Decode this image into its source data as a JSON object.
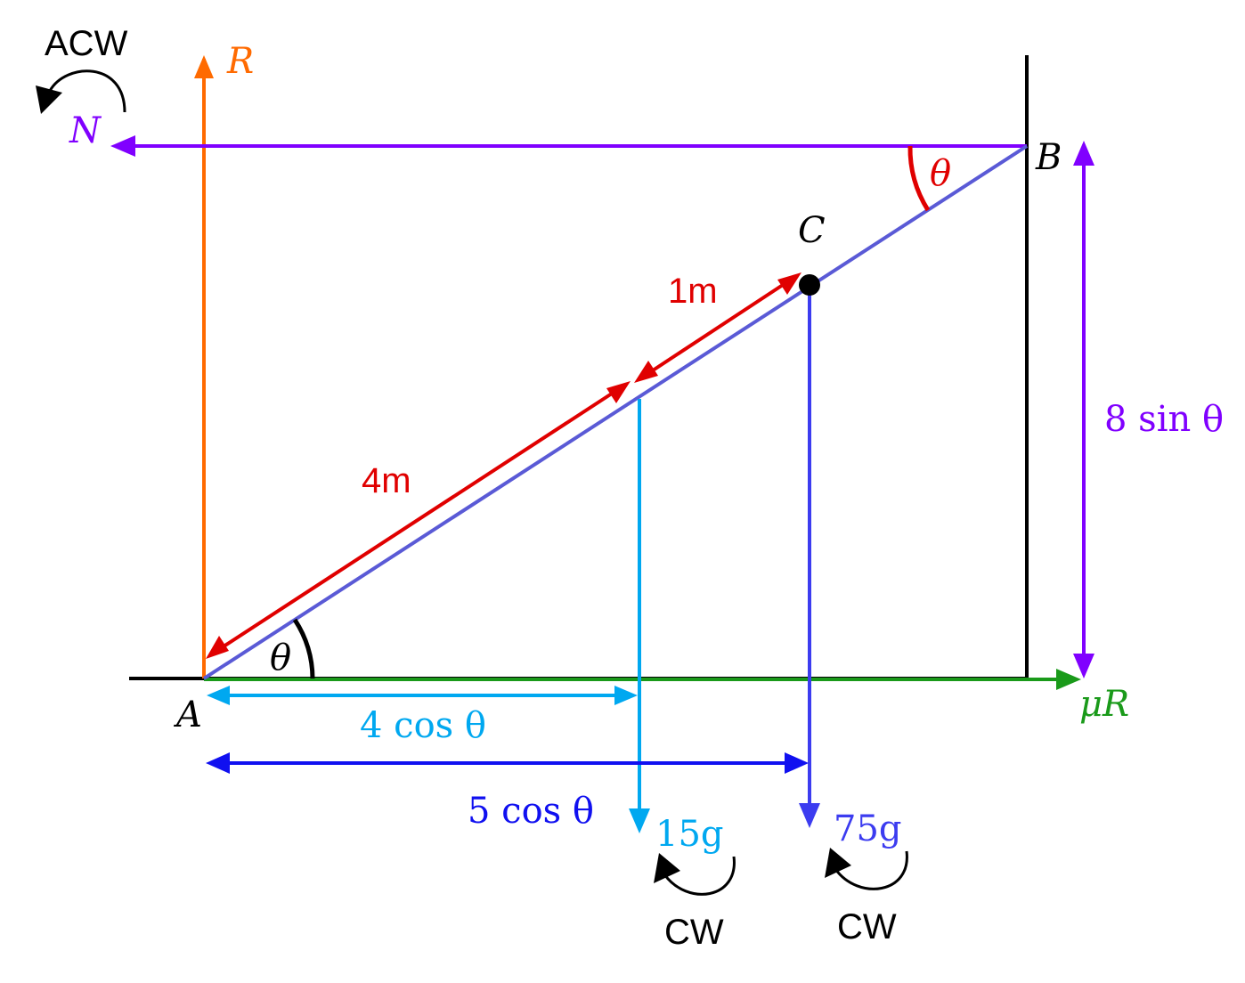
{
  "colors": {
    "black": "#000000",
    "orange": "#ff6a00",
    "purple": "#8000ff",
    "ladder": "#5a5ad6",
    "red": "#e00000",
    "lightblue": "#00a8f0",
    "blue": "#1010f0",
    "weightblue": "#3c3cf0",
    "green": "#1a9a1a"
  },
  "labels": {
    "acw": "ACW",
    "r": "R",
    "n": "N",
    "b": "B",
    "c": "C",
    "a": "A",
    "theta_top": "θ",
    "theta_bottom": "θ",
    "one_m": "1m",
    "four_m": "4m",
    "eight_sin": "8 sin θ",
    "mu_r": "μR",
    "four_cos": "4 cos θ",
    "five_cos": "5 cos θ",
    "fifteen_g": "15g",
    "seventy_five_g": "75g",
    "cw_left": "CW",
    "cw_right": "CW"
  }
}
